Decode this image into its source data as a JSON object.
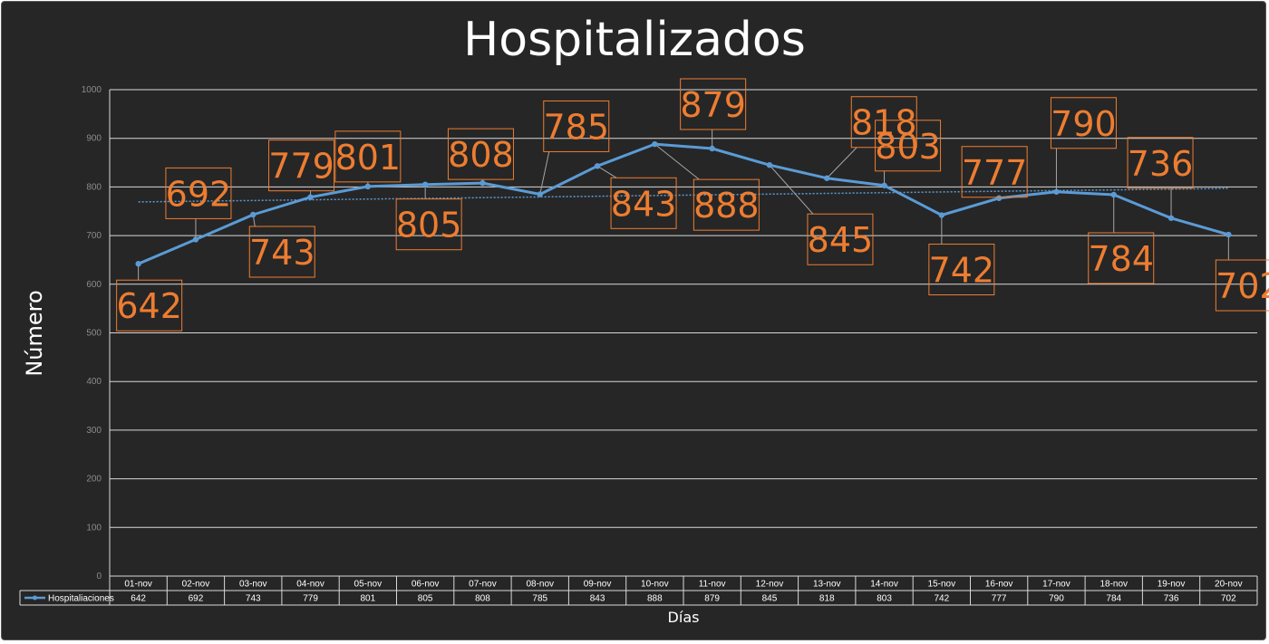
{
  "chart_data": {
    "type": "line",
    "title": "Hospitalizados",
    "xlabel": "Días",
    "ylabel": "Número",
    "categories": [
      "01-nov",
      "02-nov",
      "03-nov",
      "04-nov",
      "05-nov",
      "06-nov",
      "07-nov",
      "08-nov",
      "09-nov",
      "10-nov",
      "11-nov",
      "12-nov",
      "13-nov",
      "14-nov",
      "15-nov",
      "16-nov",
      "17-nov",
      "18-nov",
      "19-nov",
      "20-nov"
    ],
    "series": [
      {
        "name": "Hospitaliaciones",
        "values": [
          642,
          692,
          743,
          779,
          801,
          805,
          808,
          785,
          843,
          888,
          879,
          845,
          818,
          803,
          742,
          777,
          790,
          784,
          736,
          702
        ],
        "color": "#5b9bd5"
      }
    ],
    "trendline": {
      "type": "linear",
      "style": "dotted",
      "color": "#5b9bd5"
    },
    "yticks": [
      0,
      100,
      200,
      300,
      400,
      500,
      600,
      700,
      800,
      900,
      1000
    ],
    "ylim": [
      0,
      1000
    ],
    "grid": true,
    "data_table": true,
    "data_label_color": "#ed7d31",
    "colors": {
      "background": "#262626",
      "plot_area": "#262626",
      "gridlines": "#d9d9d9",
      "text": "#ffffff",
      "ticks": "#8c8c8c"
    }
  }
}
